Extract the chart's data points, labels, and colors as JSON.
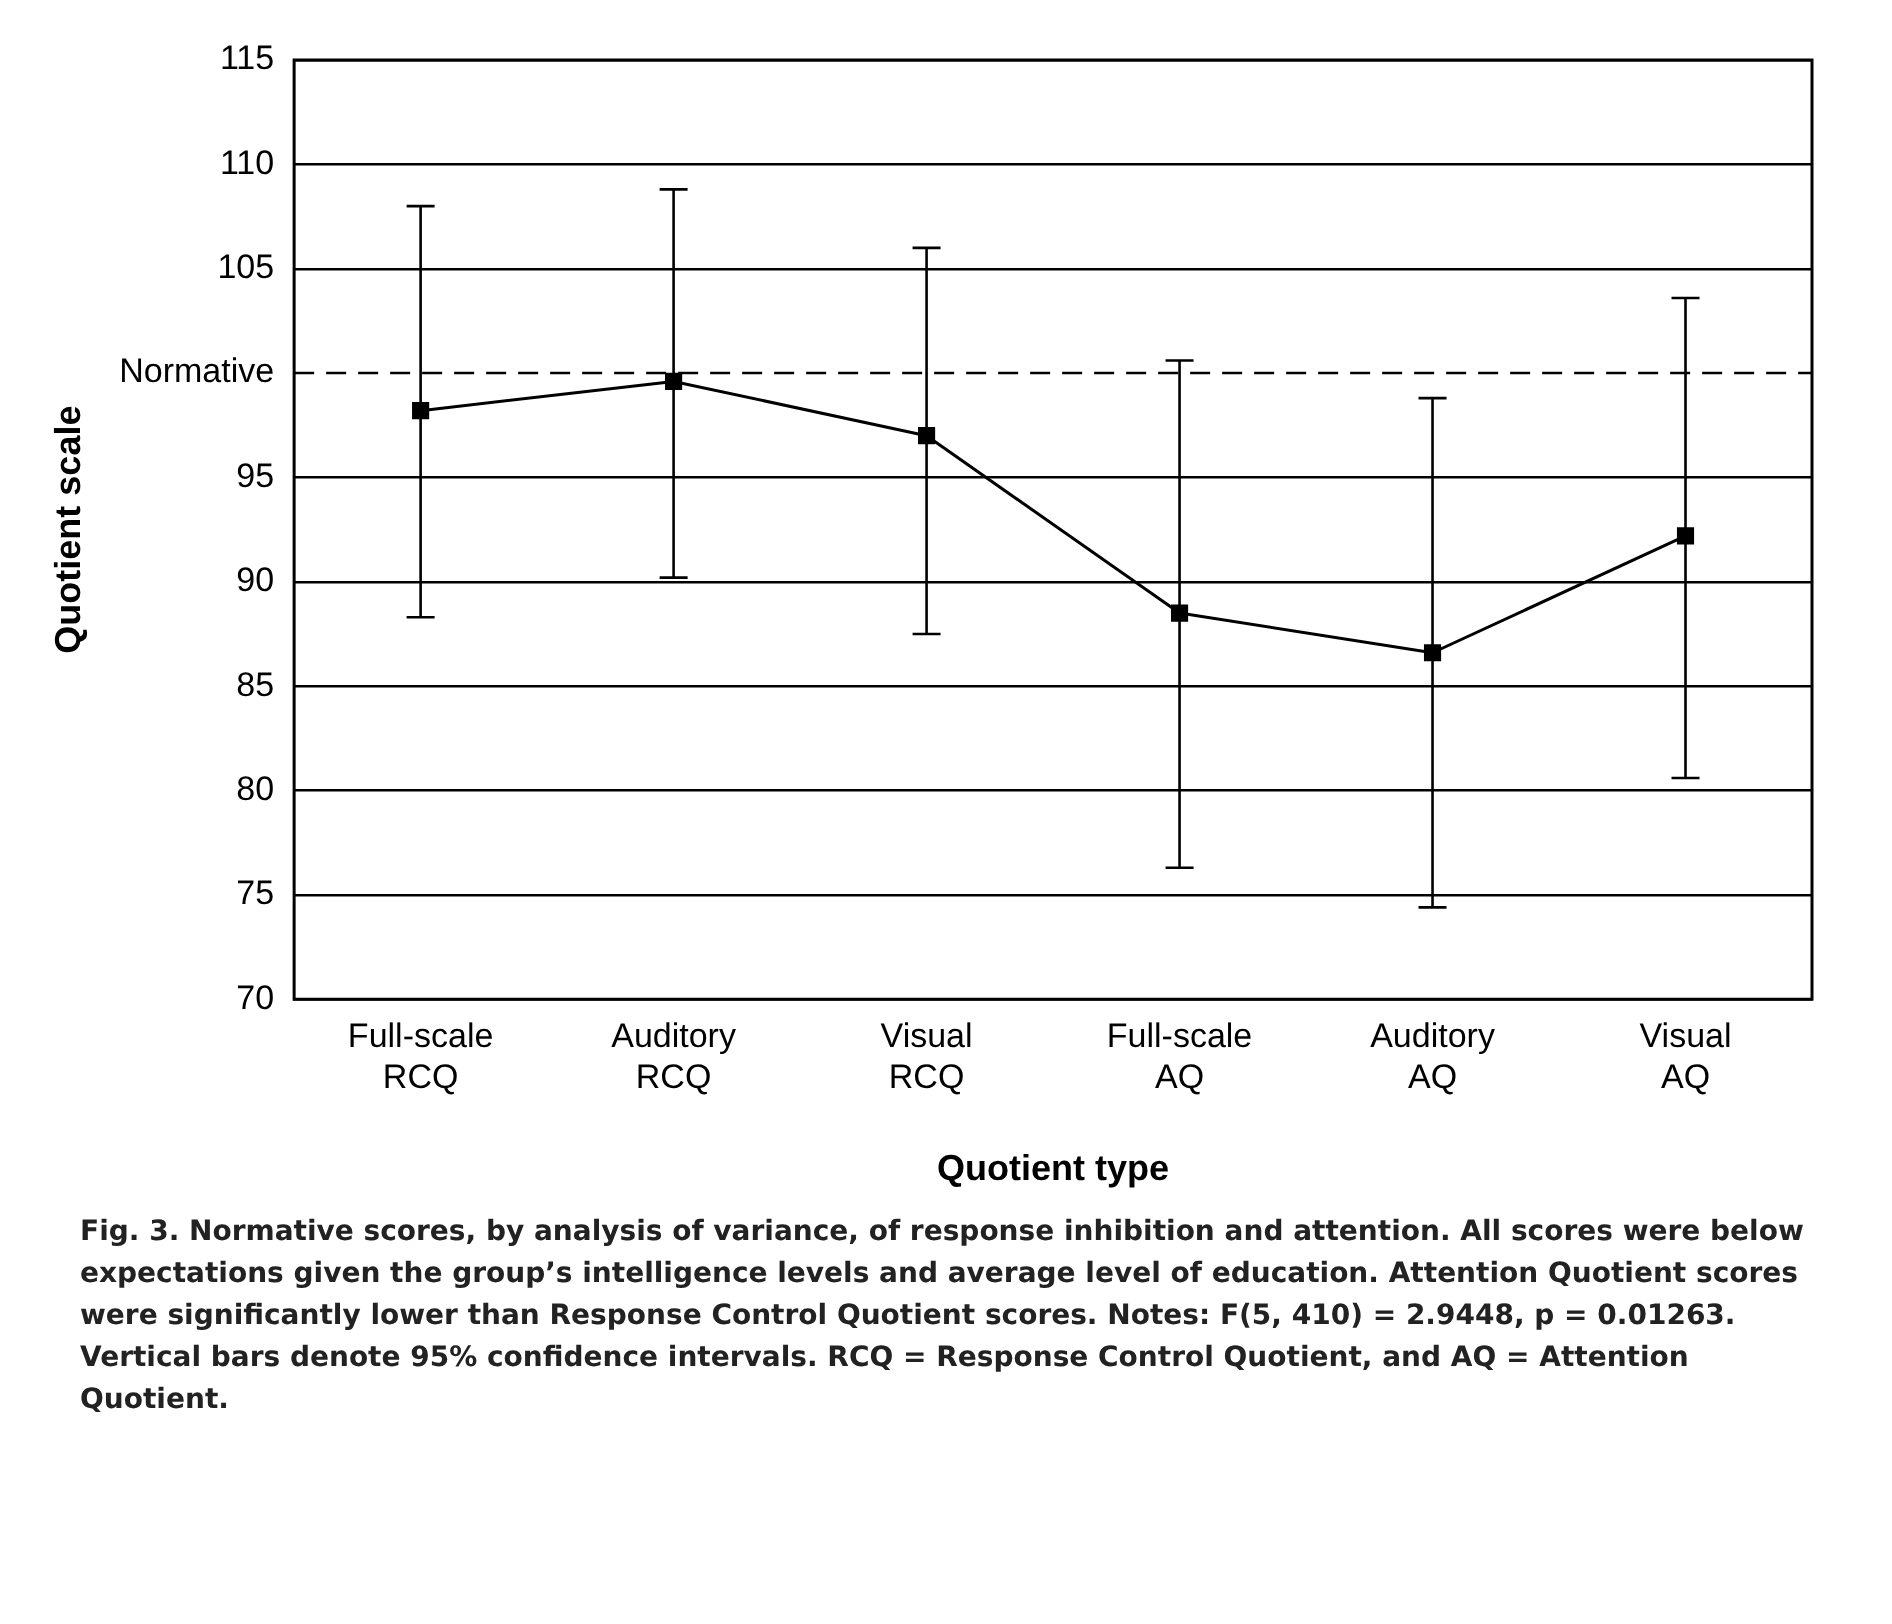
{
  "chart_data": {
    "type": "line",
    "xlabel": "Quotient type",
    "ylabel": "Quotient scale",
    "categories": [
      "Full-scale\nRCQ",
      "Auditory\nRCQ",
      "Visual\nRCQ",
      "Full-scale\nAQ",
      "Auditory\nAQ",
      "Visual\nAQ"
    ],
    "series": [
      {
        "color": "#000000",
        "values": [
          98.2,
          99.6,
          97.0,
          88.5,
          86.6,
          92.2
        ],
        "errors": [
          [
            88.3,
            108.0
          ],
          [
            90.2,
            108.8
          ],
          [
            87.5,
            106.0
          ],
          [
            76.3,
            100.6
          ],
          [
            74.4,
            98.8
          ],
          [
            80.6,
            103.6
          ]
        ]
      }
    ],
    "ylim": [
      70,
      115
    ],
    "yticks": [
      70,
      75,
      80,
      85,
      90,
      95,
      {
        "value": 100,
        "label": "Normative"
      },
      105,
      110,
      115
    ],
    "ref_lines": [
      {
        "axis": "y",
        "value": 100,
        "color": "#000000",
        "line_style": "dashed"
      }
    ],
    "grid": "y",
    "legend": false,
    "marker": "square",
    "line_style": "solid",
    "annotations": [
      "Fig. 3. Normative scores, by analysis of variance, of response inhibition and attention. All scores were below expectations given the group’s intelligence levels and average level of education. Attention Quotient scores were significantly lower than Response Control Quotient scores. Notes: F(5, 410) = 2.9448, p = 0.01263. Vertical bars denote 95% confidence intervals. RCQ = Response Control Quotient, and AQ = Attention Quotient."
    ]
  }
}
